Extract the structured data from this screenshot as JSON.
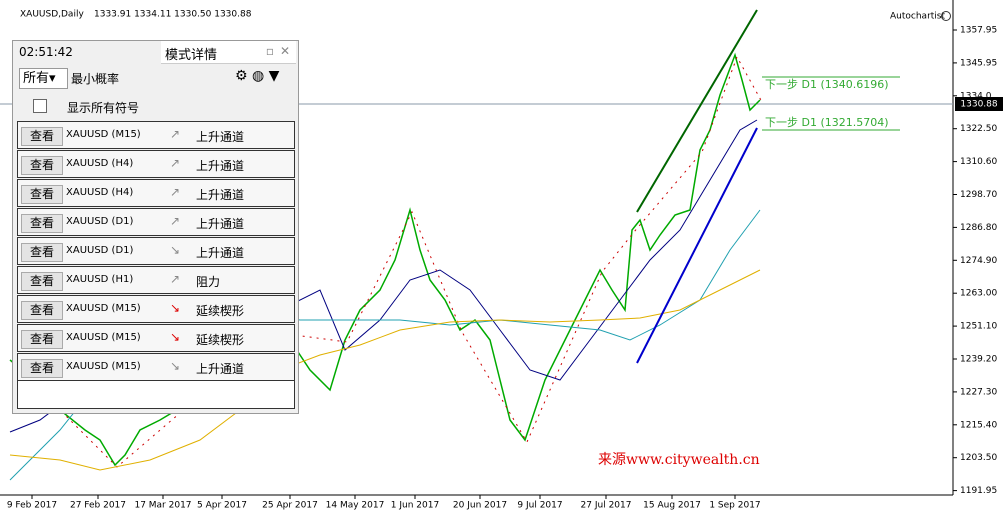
{
  "header": {
    "symbol": "XAUUSD,Daily",
    "ohlc": "1333.91 1334.11 1330.50 1330.88",
    "brand": "Autochartist"
  },
  "price_axis": [
    "1357.95",
    "1345.95",
    "1334.0",
    "1322.50",
    "1310.60",
    "1298.70",
    "1286.80",
    "1274.90",
    "1263.00",
    "1251.10",
    "1239.20",
    "1227.30",
    "1215.40",
    "1203.50",
    "1191.95"
  ],
  "current_price": "1330.88",
  "time_axis": [
    "9 Feb 2017",
    "27 Feb 2017",
    "17 Mar 2017",
    "5 Apr 2017",
    "25 Apr 2017",
    "14 May 2017",
    "1 Jun 2017",
    "20 Jun 2017",
    "9 Jul 2017",
    "27 Jul 2017",
    "15 Aug 2017",
    "1 Sep 2017"
  ],
  "annotations": [
    "下一步 D1 (1340.6196)",
    "下一步 D1 (1321.5704)"
  ],
  "watermark": "来源www.citywealth.cn",
  "panel": {
    "clock": "02:51:42",
    "tab": "模式详情",
    "filter": "所有",
    "filter_label": "最小概率",
    "checkbox_label": "显示所有符号",
    "rows": [
      {
        "button": "查看",
        "symbol": "XAUUSD (M15)",
        "pattern": "上升通道"
      },
      {
        "button": "查看",
        "symbol": "XAUUSD (H4)",
        "pattern": "上升通道"
      },
      {
        "button": "查看",
        "symbol": "XAUUSD (H4)",
        "pattern": "上升通道"
      },
      {
        "button": "查看",
        "symbol": "XAUUSD (D1)",
        "pattern": "上升通道"
      },
      {
        "button": "查看",
        "symbol": "XAUUSD (D1)",
        "pattern": "上升通道"
      },
      {
        "button": "查看",
        "symbol": "XAUUSD (H1)",
        "pattern": "阻力"
      },
      {
        "button": "查看",
        "symbol": "XAUUSD (M15)",
        "pattern": "延续楔形"
      },
      {
        "button": "查看",
        "symbol": "XAUUSD (M15)",
        "pattern": "延续楔形"
      },
      {
        "button": "查看",
        "symbol": "XAUUSD (M15)",
        "pattern": "上升通道"
      }
    ]
  }
}
